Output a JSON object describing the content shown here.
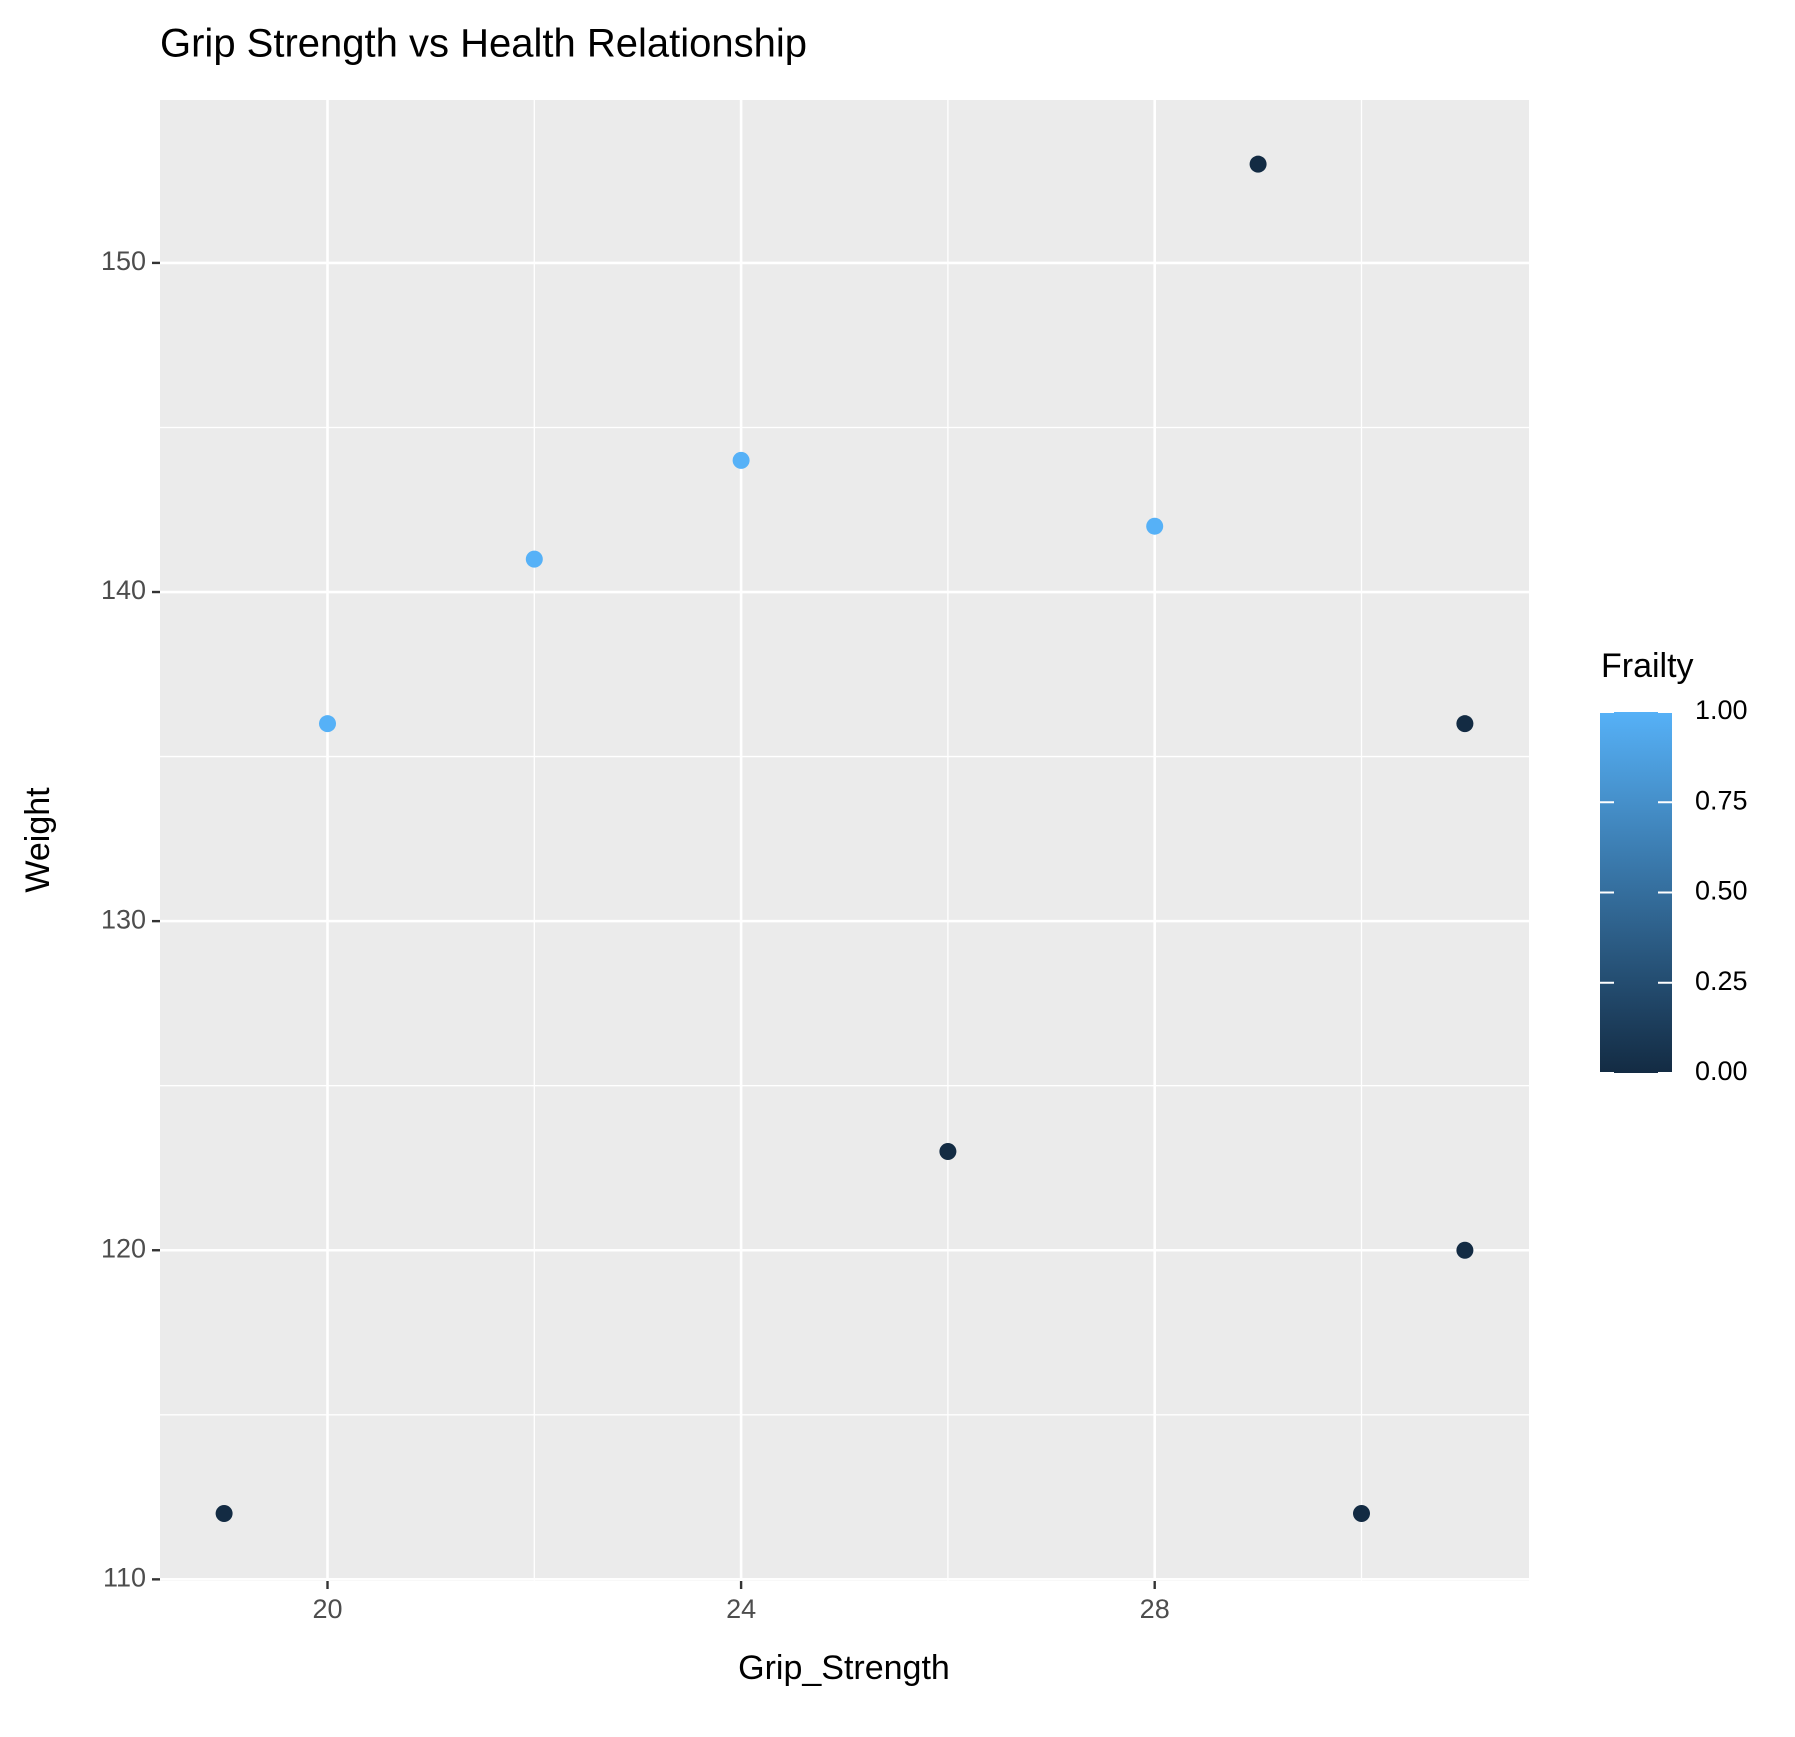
{
  "chart_data": {
    "type": "scatter",
    "title": "Grip Strength vs Health Relationship",
    "x_label": "Grip_Strength",
    "y_label": "Weight",
    "x": [
      19,
      20,
      22,
      24,
      26,
      28,
      29,
      30,
      31,
      31
    ],
    "values": [
      112,
      136,
      141,
      144,
      123,
      142,
      153,
      112,
      136,
      120
    ],
    "frailty": [
      0,
      1,
      1,
      1,
      0,
      1,
      0,
      0,
      0,
      0
    ],
    "xlim": [
      18.38,
      31.62
    ],
    "ylim": [
      109.95,
      154.95
    ],
    "xticks": [
      20,
      24,
      28
    ],
    "xminor": [
      22,
      26,
      30
    ],
    "yticks": [
      110,
      120,
      130,
      140,
      150
    ],
    "yminor": [
      115,
      125,
      135,
      145
    ],
    "grid": true,
    "legend": {
      "title": "Frailty",
      "position": "right",
      "low_color": "#132B43",
      "high_color": "#56B1F7",
      "limits": [
        0,
        1
      ],
      "ticks": [
        {
          "value": 0,
          "label": "0.00"
        },
        {
          "value": 0.25,
          "label": "0.25"
        },
        {
          "value": 0.5,
          "label": "0.50"
        },
        {
          "value": 0.75,
          "label": "0.75"
        },
        {
          "value": 1,
          "label": "1.00"
        }
      ]
    }
  }
}
